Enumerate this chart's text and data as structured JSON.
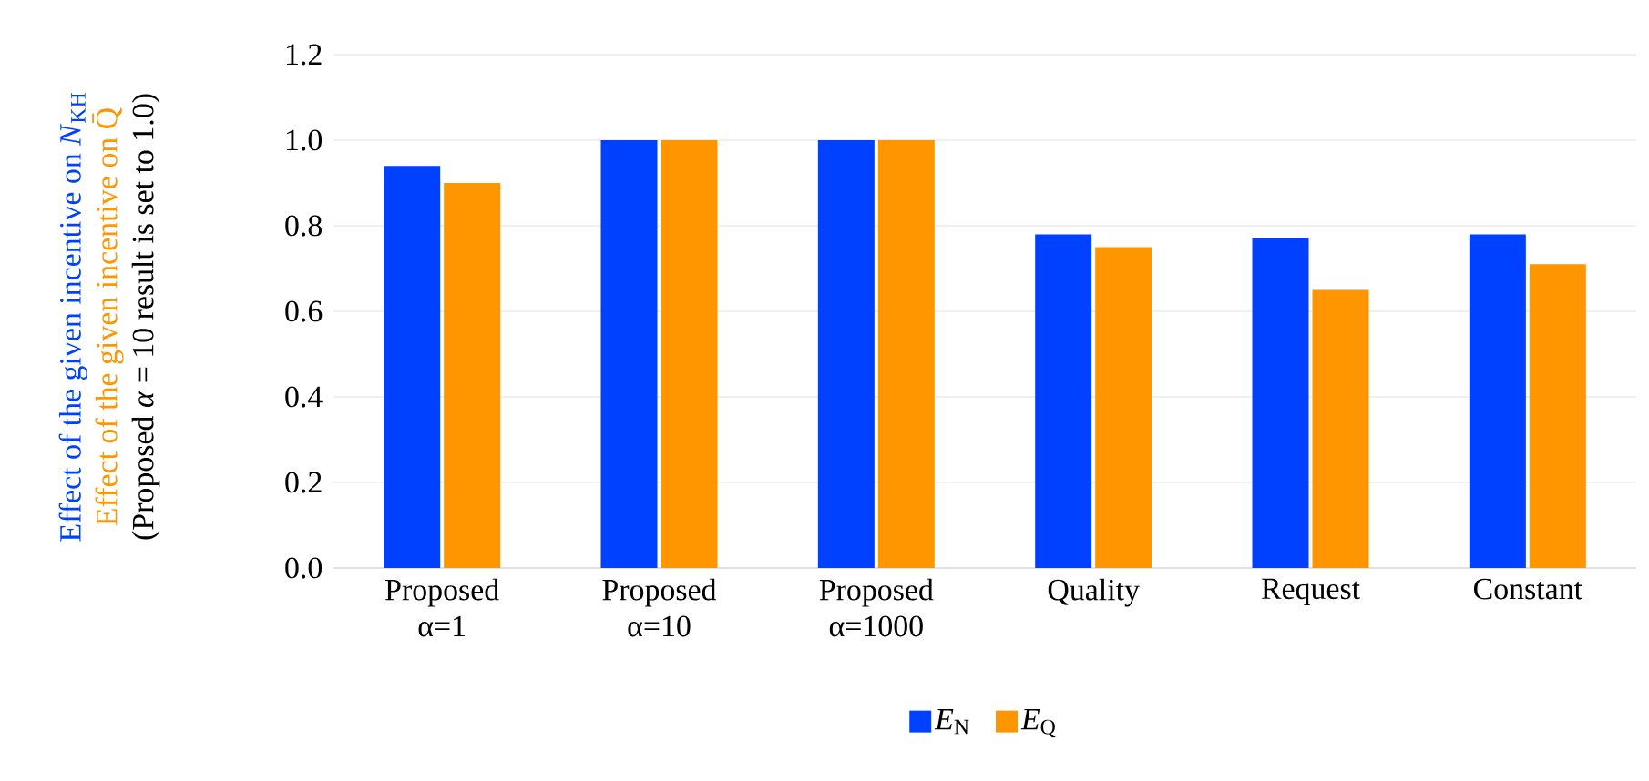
{
  "chart_data": {
    "type": "bar",
    "ylabel": "(Proposed *α* = 10 result is set to 1.0)",
    "annotations": [
      "Effect of the given incentive on *N*$_{KH}$",
      "Effect of the given incentive on Q̄"
    ],
    "categories": [
      "Proposed α=1",
      "Proposed α=10",
      "Proposed α=1000",
      "Quality",
      "Request",
      "Constant"
    ],
    "series": [
      {
        "name": "*E*$_{N}$",
        "color": "#0041ff",
        "values": [
          0.94,
          1.0,
          1.0,
          0.78,
          0.77,
          0.78
        ]
      },
      {
        "name": "*E*$_{Q}$",
        "color": "#ff9600",
        "values": [
          0.9,
          1.0,
          1.0,
          0.75,
          0.65,
          0.71
        ]
      }
    ],
    "ylim": [
      0,
      1.2
    ],
    "yticks": [
      {
        "value": 0,
        "label": "0.0"
      },
      {
        "value": 0.2,
        "label": "0.2"
      },
      {
        "value": 0.4,
        "label": "0.4"
      },
      {
        "value": 0.6,
        "label": "0.6"
      },
      {
        "value": 0.8,
        "label": "0.8"
      },
      {
        "value": 1.0,
        "label": "1.0"
      },
      {
        "value": 1.2,
        "label": "1.2"
      }
    ],
    "grid": "y",
    "legend": "bottom"
  }
}
